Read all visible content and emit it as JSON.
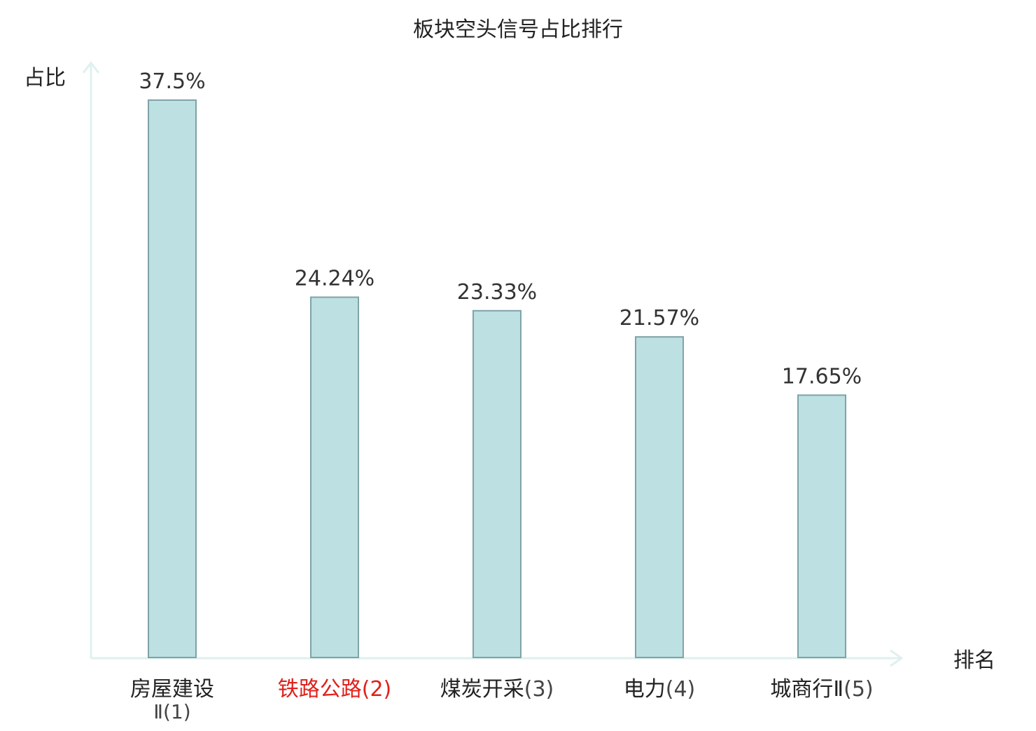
{
  "chart_data": {
    "type": "bar",
    "title": "板块空头信号占比排行",
    "ylabel": "占比",
    "xlabel": "排名",
    "ylim": [
      0,
      40
    ],
    "grid": false,
    "legend": "none",
    "categories": [
      {
        "name": "房屋建设",
        "rank": "Ⅱ(1)",
        "highlighted": false
      },
      {
        "name": "铁路公路",
        "rank": "(2)",
        "highlighted": true
      },
      {
        "name": "煤炭开采",
        "rank": "(3)",
        "highlighted": false
      },
      {
        "name": "电力",
        "rank": "(4)",
        "highlighted": false
      },
      {
        "name": "城商行Ⅱ",
        "rank": "(5)",
        "highlighted": false
      }
    ],
    "values": [
      37.5,
      24.24,
      23.33,
      21.57,
      17.65
    ],
    "value_labels": [
      "37.5%",
      "24.24%",
      "23.33%",
      "21.57%",
      "17.65%"
    ]
  },
  "colors": {
    "bar_fill": "#bde0e2",
    "bar_stroke": "#7fa3a6",
    "axis": "#dff0ee",
    "text": "#222222",
    "value_label": "#333333",
    "rank_text": "#444444",
    "highlight": "#e0201b"
  }
}
